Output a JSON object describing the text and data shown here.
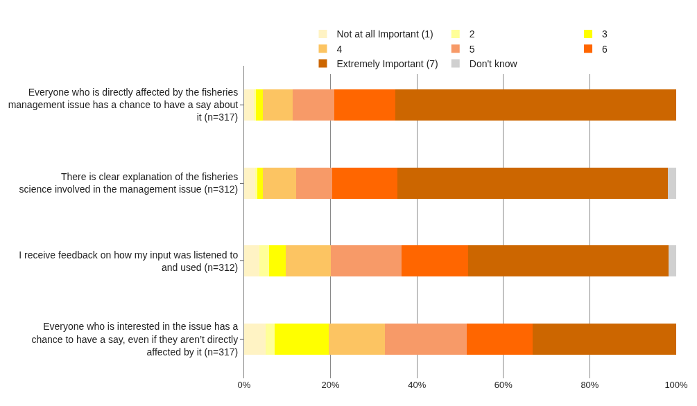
{
  "chart_data": {
    "type": "bar",
    "orientation": "horizontal",
    "stacked": true,
    "legend": "top",
    "grid": "x",
    "categories": [
      "Everyone who is directly affected by the fisheries management issue has a chance to have a say about it (n=317)",
      "There is clear explanation of the fisheries science involved in the management issue (n=312)",
      "I receive feedback on how my input was listened to and used (n=312)",
      "Everyone who is interested in the issue has a chance to have a say, even if they aren’t directly affected by it (n=317)"
    ],
    "series": [
      {
        "name": "Not at all Important (1)",
        "color": "#fff3c4",
        "values": [
          2.3,
          2.5,
          3.5,
          5
        ]
      },
      {
        "name": "2",
        "color": "#ffff99",
        "values": [
          0.5,
          0.5,
          2.2,
          2
        ]
      },
      {
        "name": "3",
        "color": "#ffff00",
        "values": [
          1.5,
          1.4,
          3.9,
          12.6
        ]
      },
      {
        "name": "4",
        "color": "#fcc462",
        "values": [
          7,
          7.7,
          10.4,
          13
        ]
      },
      {
        "name": "5",
        "color": "#f79a68",
        "values": [
          9.6,
          8.3,
          16.4,
          18.9
        ]
      },
      {
        "name": "6",
        "color": "#ff6600",
        "values": [
          14.1,
          15.1,
          15.5,
          15.3
        ]
      },
      {
        "name": "Extremely Important (7)",
        "color": "#cc6600",
        "values": [
          65,
          62.6,
          46.4,
          33.2
        ]
      },
      {
        "name": "Don't know",
        "color": "#d0d0d0",
        "values": [
          0,
          1.9,
          1.7,
          0
        ]
      }
    ],
    "xlim": [
      0,
      100
    ],
    "xticks": [
      {
        "value": 0,
        "label": "0%"
      },
      {
        "value": 20,
        "label": "20%"
      },
      {
        "value": 40,
        "label": "40%"
      },
      {
        "value": 60,
        "label": "60%"
      },
      {
        "value": 80,
        "label": "80%"
      },
      {
        "value": 100,
        "label": "100%"
      }
    ]
  }
}
